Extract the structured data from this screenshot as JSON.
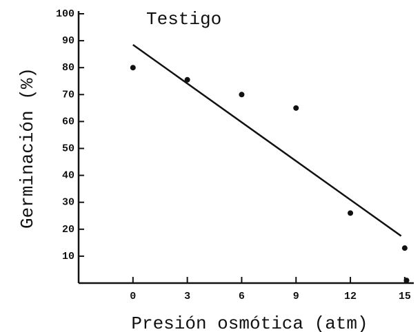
{
  "chart_data": {
    "type": "scatter",
    "title": "Testigo",
    "xlabel": "Presión osmótica (atm)",
    "ylabel": "Germinación (%)",
    "xlim": [
      -3,
      15.5
    ],
    "ylim": [
      0,
      100
    ],
    "xticks": [
      0,
      3,
      6,
      9,
      12,
      15
    ],
    "yticks": [
      10,
      20,
      30,
      40,
      50,
      60,
      70,
      80,
      90,
      100
    ],
    "color": "#111111",
    "points": {
      "x": [
        0,
        3,
        6,
        9,
        12,
        15,
        15.1
      ],
      "values": [
        80,
        75.5,
        70,
        65,
        26,
        13,
        1
      ]
    },
    "fit": {
      "x": [
        0,
        14.8
      ],
      "values": [
        88.5,
        17.5
      ]
    }
  }
}
